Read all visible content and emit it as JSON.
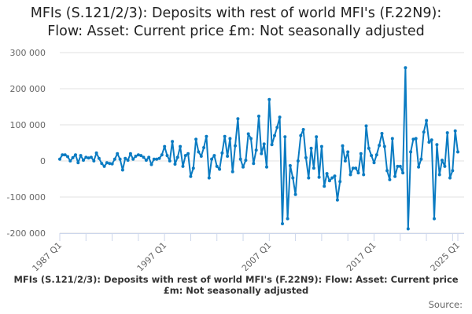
{
  "chart_data": {
    "type": "line",
    "title": "MFIs (S.121/2/3): Deposits with rest of world MFI's (F.22N9): Flow: Asset: Current price £m: Not seasonally adjusted",
    "caption": "MFIs (S.121/2/3): Deposits with rest of world MFI's (F.22N9): Flow: Asset: Current price £m: Not seasonally adjusted",
    "source_label": "Source:",
    "xlabel": "",
    "ylabel": "",
    "x_start": "1987 Q1",
    "x_end": "2025 Q1",
    "x_tick_labels": [
      {
        "label": "1987 Q1",
        "index": 0
      },
      {
        "label": "1997 Q1",
        "index": 40
      },
      {
        "label": "2007 Q1",
        "index": 80
      },
      {
        "label": "2017 Q1",
        "index": 120
      },
      {
        "label": "2025 Q1",
        "index": 152
      }
    ],
    "y_ticks": [
      300000,
      200000,
      100000,
      0,
      -100000,
      -200000
    ],
    "y_tick_labels": [
      "300 000",
      "200 000",
      "100 000",
      "0",
      "-100 000",
      "-200 000"
    ],
    "ylim": [
      -200000,
      300000
    ],
    "grid": true,
    "legend": "none",
    "series": [
      {
        "name": "MFIs Deposits with rest of world MFI's",
        "color": "#0a7bc2",
        "values": [
          5000,
          17000,
          17000,
          12000,
          0,
          9000,
          17000,
          -5000,
          15000,
          2000,
          10000,
          8000,
          10000,
          0,
          22000,
          7000,
          -7000,
          -15000,
          -5000,
          -7000,
          -8000,
          5000,
          20000,
          5000,
          -25000,
          7000,
          2000,
          20000,
          5000,
          13000,
          17000,
          15000,
          10000,
          2000,
          10000,
          -10000,
          5000,
          5000,
          7000,
          17000,
          40000,
          15000,
          0,
          54000,
          -9000,
          10000,
          40000,
          -15000,
          15000,
          20000,
          -43000,
          -20000,
          60000,
          25000,
          13000,
          37000,
          68000,
          -47000,
          5000,
          15000,
          -15000,
          -23000,
          22000,
          68000,
          13000,
          62000,
          -30000,
          42000,
          117000,
          5000,
          -17000,
          2000,
          75000,
          62000,
          -7000,
          30000,
          124000,
          20000,
          47000,
          -17000,
          170000,
          45000,
          70000,
          93000,
          121000,
          -174000,
          67000,
          -160000,
          -13000,
          -47000,
          -93000,
          0,
          70000,
          87000,
          9000,
          -47000,
          35000,
          -20000,
          67000,
          -45000,
          40000,
          -70000,
          -35000,
          -55000,
          -47000,
          -42000,
          -108000,
          -57000,
          42000,
          0,
          25000,
          -38000,
          -20000,
          -20000,
          -33000,
          20000,
          -38000,
          97000,
          35000,
          15000,
          -5000,
          17000,
          43000,
          76000,
          40000,
          -27000,
          -52000,
          62000,
          -43000,
          -15000,
          -15000,
          -33000,
          258000,
          -188000,
          25000,
          60000,
          62000,
          -17000,
          5000,
          80000,
          112000,
          52000,
          58000,
          -160000,
          45000,
          -38000,
          2000,
          -15000,
          78000,
          -47000,
          -27000,
          83000,
          25000
        ]
      }
    ]
  }
}
